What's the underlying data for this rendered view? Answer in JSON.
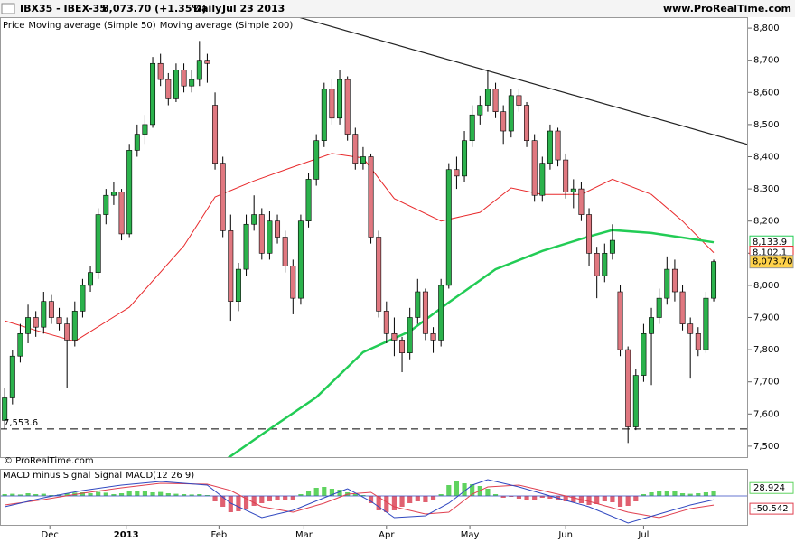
{
  "header": {
    "symbol": "IBX35 - IBEX-35",
    "quote": "8,073.70 (+1.35%)",
    "period": "Daily",
    "date": "Jul 23 2013",
    "site": "www.ProRealTime.com"
  },
  "chart_data": [
    {
      "type": "candlestick",
      "legend_label": "Price",
      "watermark": "© ProRealTime.com",
      "up_color": "#2bb24c",
      "down_color": "#e07880",
      "xlim": [
        -0.6,
        95.4
      ],
      "ylim": [
        7466,
        8834
      ],
      "yticks": [
        {
          "value": 7500,
          "label": "7,500"
        },
        {
          "value": 7600,
          "label": "7,600"
        },
        {
          "value": 7700,
          "label": "7,700"
        },
        {
          "value": 7800,
          "label": "7,800"
        },
        {
          "value": 7900,
          "label": "7,900"
        },
        {
          "value": 8000,
          "label": "8,000"
        },
        {
          "value": 8100,
          "label": "8,100"
        },
        {
          "value": 8200,
          "label": "8,200"
        },
        {
          "value": 8300,
          "label": "8,300"
        },
        {
          "value": 8400,
          "label": "8,400"
        },
        {
          "value": 8500,
          "label": "8,500"
        },
        {
          "value": 8600,
          "label": "8,600"
        },
        {
          "value": 8700,
          "label": "8,700"
        },
        {
          "value": 8800,
          "label": "8,800"
        }
      ],
      "xticks": [
        {
          "value": 5.8,
          "label": "Dec"
        },
        {
          "value": 15.6,
          "label": "2013"
        },
        {
          "value": 27.5,
          "label": "Feb"
        },
        {
          "value": 38.4,
          "label": "Mar"
        },
        {
          "value": 49,
          "label": "Apr"
        },
        {
          "value": 59.7,
          "label": "May"
        },
        {
          "value": 72,
          "label": "Jun"
        },
        {
          "value": 82,
          "label": "Jul"
        }
      ],
      "ohlc": [
        [
          7580,
          7680,
          7553,
          7650
        ],
        [
          7650,
          7800,
          7630,
          7780
        ],
        [
          7780,
          7880,
          7760,
          7850
        ],
        [
          7850,
          7940,
          7820,
          7900
        ],
        [
          7900,
          7920,
          7840,
          7870
        ],
        [
          7870,
          7980,
          7850,
          7950
        ],
        [
          7950,
          7970,
          7880,
          7900
        ],
        [
          7900,
          7930,
          7860,
          7880
        ],
        [
          7880,
          7900,
          7680,
          7830
        ],
        [
          7830,
          7950,
          7810,
          7920
        ],
        [
          7920,
          8020,
          7900,
          8000
        ],
        [
          8000,
          8060,
          7980,
          8040
        ],
        [
          8040,
          8240,
          8020,
          8220
        ],
        [
          8220,
          8300,
          8190,
          8280
        ],
        [
          8280,
          8320,
          8250,
          8290
        ],
        [
          8290,
          8300,
          8140,
          8160
        ],
        [
          8160,
          8440,
          8150,
          8420
        ],
        [
          8420,
          8500,
          8400,
          8470
        ],
        [
          8470,
          8530,
          8440,
          8500
        ],
        [
          8500,
          8710,
          8490,
          8690
        ],
        [
          8690,
          8720,
          8620,
          8640
        ],
        [
          8640,
          8660,
          8560,
          8580
        ],
        [
          8580,
          8690,
          8570,
          8670
        ],
        [
          8670,
          8690,
          8600,
          8620
        ],
        [
          8620,
          8670,
          8600,
          8640
        ],
        [
          8640,
          8760,
          8620,
          8700
        ],
        [
          8700,
          8720,
          8630,
          8690
        ],
        [
          8560,
          8600,
          8360,
          8380
        ],
        [
          8380,
          8400,
          8150,
          8170
        ],
        [
          8170,
          8220,
          7890,
          7950
        ],
        [
          7950,
          8070,
          7920,
          8050
        ],
        [
          8050,
          8220,
          8030,
          8190
        ],
        [
          8190,
          8280,
          8170,
          8220
        ],
        [
          8220,
          8240,
          8080,
          8100
        ],
        [
          8100,
          8230,
          8080,
          8200
        ],
        [
          8200,
          8220,
          8130,
          8150
        ],
        [
          8150,
          8170,
          8040,
          8060
        ],
        [
          8060,
          8080,
          7910,
          7960
        ],
        [
          7960,
          8220,
          7940,
          8200
        ],
        [
          8200,
          8350,
          8180,
          8330
        ],
        [
          8330,
          8470,
          8310,
          8450
        ],
        [
          8450,
          8630,
          8430,
          8610
        ],
        [
          8610,
          8640,
          8500,
          8520
        ],
        [
          8520,
          8670,
          8500,
          8640
        ],
        [
          8640,
          8650,
          8450,
          8470
        ],
        [
          8470,
          8490,
          8360,
          8380
        ],
        [
          8380,
          8430,
          8360,
          8400
        ],
        [
          8400,
          8410,
          8130,
          8150
        ],
        [
          8150,
          8170,
          7900,
          7920
        ],
        [
          7920,
          7950,
          7820,
          7850
        ],
        [
          7850,
          7900,
          7780,
          7830
        ],
        [
          7830,
          7840,
          7730,
          7790
        ],
        [
          7790,
          7930,
          7770,
          7900
        ],
        [
          7900,
          8020,
          7880,
          7980
        ],
        [
          7980,
          7990,
          7830,
          7850
        ],
        [
          7850,
          7870,
          7790,
          7830
        ],
        [
          7830,
          8020,
          7810,
          8000
        ],
        [
          8000,
          8380,
          7990,
          8360
        ],
        [
          8360,
          8400,
          8300,
          8340
        ],
        [
          8340,
          8480,
          8320,
          8450
        ],
        [
          8450,
          8560,
          8430,
          8530
        ],
        [
          8530,
          8590,
          8500,
          8560
        ],
        [
          8560,
          8670,
          8540,
          8610
        ],
        [
          8610,
          8630,
          8520,
          8540
        ],
        [
          8540,
          8560,
          8440,
          8480
        ],
        [
          8480,
          8610,
          8460,
          8590
        ],
        [
          8590,
          8610,
          8540,
          8560
        ],
        [
          8560,
          8570,
          8430,
          8450
        ],
        [
          8450,
          8470,
          8260,
          8280
        ],
        [
          8280,
          8400,
          8260,
          8380
        ],
        [
          8380,
          8500,
          8360,
          8480
        ],
        [
          8480,
          8490,
          8370,
          8390
        ],
        [
          8390,
          8410,
          8270,
          8290
        ],
        [
          8290,
          8330,
          8240,
          8300
        ],
        [
          8300,
          8320,
          8200,
          8220
        ],
        [
          8220,
          8240,
          8060,
          8100
        ],
        [
          8100,
          8120,
          7960,
          8030
        ],
        [
          8030,
          8130,
          8010,
          8100
        ],
        [
          8100,
          8190,
          8080,
          8140
        ],
        [
          7980,
          8000,
          7780,
          7800
        ],
        [
          7800,
          7810,
          7510,
          7560
        ],
        [
          7560,
          7740,
          7550,
          7720
        ],
        [
          7720,
          7880,
          7700,
          7850
        ],
        [
          7850,
          7930,
          7690,
          7900
        ],
        [
          7900,
          7990,
          7880,
          7960
        ],
        [
          7960,
          8090,
          7940,
          8050
        ],
        [
          8050,
          8080,
          7950,
          7980
        ],
        [
          7980,
          8000,
          7860,
          7880
        ],
        [
          7880,
          7900,
          7710,
          7850
        ],
        [
          7850,
          7870,
          7780,
          7800
        ],
        [
          7800,
          7980,
          7790,
          7960
        ],
        [
          7960,
          8080,
          7950,
          8073.7
        ]
      ],
      "last_close_label": "8,073.70",
      "lines": [
        {
          "name": "Moving average (Simple 50)",
          "color": "#e8292b",
          "width": 1,
          "x": [
            0,
            4,
            9,
            16,
            23,
            27,
            32,
            37,
            42,
            46,
            50,
            56,
            61,
            65,
            69,
            74,
            78,
            83,
            87,
            91
          ],
          "values": [
            7890,
            7860,
            7826,
            7932,
            8123,
            8275,
            8325,
            8368,
            8410,
            8396,
            8270,
            8200,
            8227,
            8303,
            8283,
            8283,
            8330,
            8283,
            8200,
            8102.1
          ],
          "last_label": "8,102.1"
        },
        {
          "name": "Moving average (Simple 200)",
          "color": "#22cc55",
          "width": 2.5,
          "x": [
            27,
            34,
            40,
            46,
            52,
            57,
            63,
            69,
            75,
            78,
            83,
            91
          ],
          "values": [
            7435,
            7553,
            7652,
            7792,
            7857,
            7947,
            8050,
            8107,
            8152,
            8172,
            8163,
            8133.9
          ],
          "last_label": "8,133.9"
        }
      ],
      "trendline": {
        "color": "#222222",
        "x": [
          37.7,
          95.4
        ],
        "values": [
          8834,
          8438
        ]
      },
      "support": {
        "value": 7553.6,
        "label": "7,553.6"
      }
    },
    {
      "type": "macd",
      "xlim": [
        -0.6,
        95.4
      ],
      "ylim": [
        -165,
        145
      ],
      "histogram": {
        "name": "MACD minus Signal",
        "pos_color": "#5fd35f",
        "neg_color": "#e06070",
        "values": [
          10,
          12,
          8,
          15,
          10,
          12,
          5,
          8,
          14,
          18,
          20,
          15,
          22,
          18,
          10,
          15,
          25,
          30,
          28,
          20,
          22,
          15,
          12,
          10,
          8,
          10,
          5,
          -30,
          -60,
          -90,
          -85,
          -70,
          -55,
          -40,
          -30,
          -20,
          -25,
          -20,
          10,
          30,
          45,
          50,
          40,
          35,
          20,
          10,
          5,
          -40,
          -80,
          -90,
          -80,
          -60,
          -40,
          -30,
          -35,
          -25,
          10,
          60,
          80,
          70,
          65,
          55,
          40,
          10,
          -10,
          -5,
          -15,
          -25,
          -20,
          -10,
          -15,
          -25,
          -30,
          -35,
          -40,
          -50,
          -45,
          -30,
          -35,
          -60,
          -55,
          -30,
          10,
          20,
          25,
          30,
          28,
          15,
          12,
          15,
          20,
          28.924
        ]
      },
      "signal": {
        "name": "Signal",
        "color": "#e04050",
        "x": [
          0,
          5,
          10,
          15,
          20,
          26,
          29,
          33,
          37,
          41,
          44,
          47,
          50,
          54,
          57,
          60,
          62,
          66,
          70,
          75,
          80,
          84,
          88,
          91
        ],
        "values": [
          -50,
          -20,
          15,
          45,
          70,
          65,
          30,
          -60,
          -90,
          -40,
          10,
          20,
          -60,
          -100,
          -90,
          10,
          50,
          60,
          20,
          -30,
          -90,
          -120,
          -70,
          -50.542
        ]
      },
      "macd": {
        "name": "MACD(12 26 9)",
        "color": "#3048c0",
        "x": [
          0,
          5,
          10,
          15,
          20,
          26,
          29,
          33,
          37,
          41,
          44,
          47,
          50,
          54,
          57,
          60,
          62,
          66,
          70,
          75,
          80,
          84,
          88,
          91
        ],
        "values": [
          -60,
          -10,
          30,
          60,
          80,
          60,
          -40,
          -120,
          -80,
          -10,
          40,
          -30,
          -120,
          -110,
          -40,
          60,
          90,
          50,
          0,
          -60,
          -150,
          -100,
          -50,
          -21.6
        ]
      }
    }
  ]
}
